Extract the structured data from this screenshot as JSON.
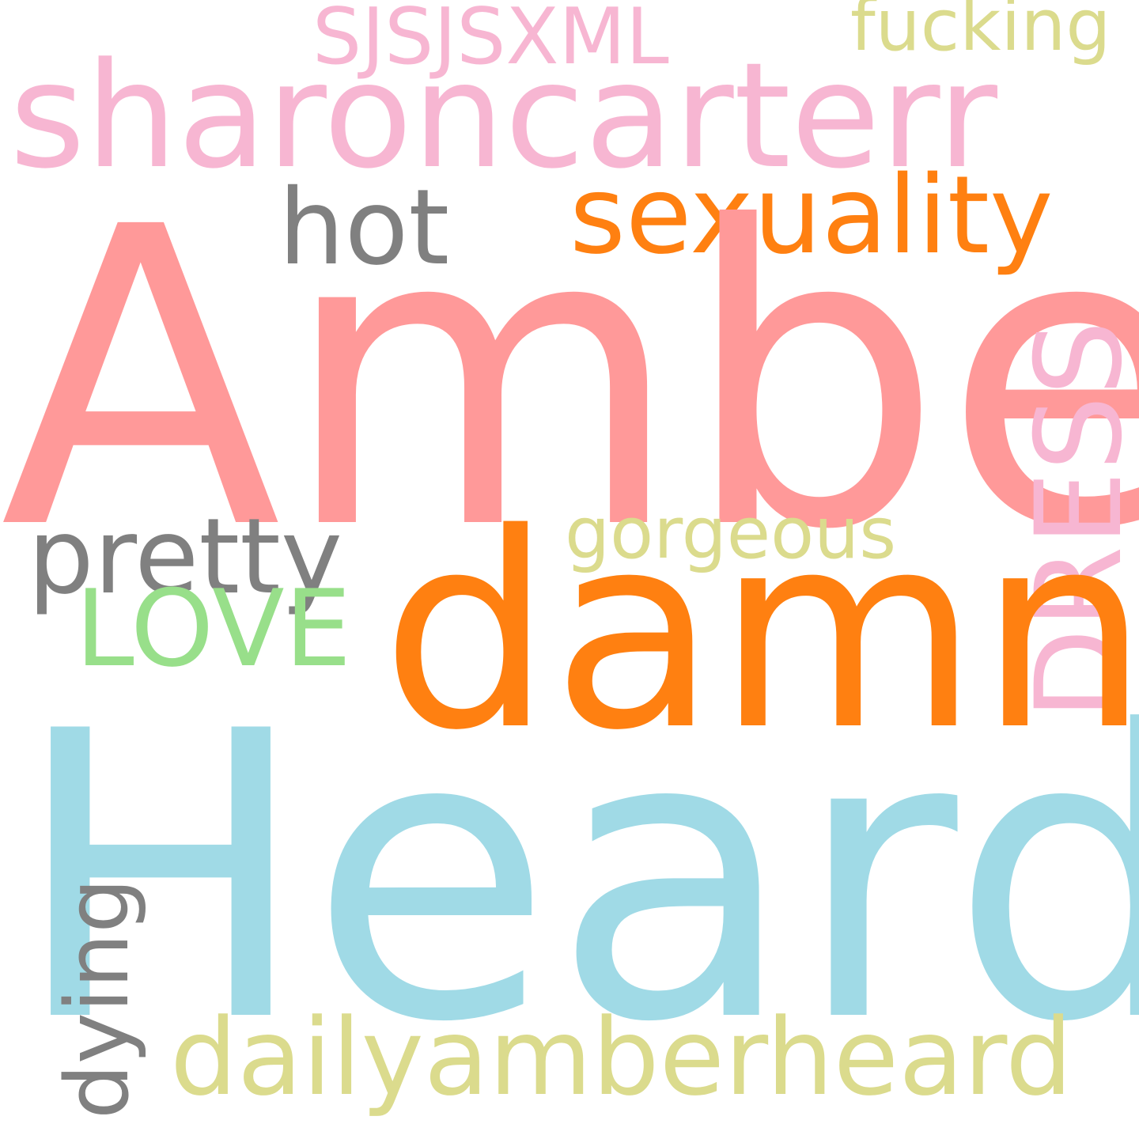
{
  "words": {
    "amber": {
      "text": "Amber",
      "color": "#ff9999"
    },
    "heard": {
      "text": "Heard",
      "color": "#a0dae6"
    },
    "damn": {
      "text": "damn",
      "color": "#ff8011"
    },
    "sharoncarterr": {
      "text": "sharoncarterr",
      "color": "#f7b6d2"
    },
    "sexuality": {
      "text": "sexuality",
      "color": "#ff8011"
    },
    "hot": {
      "text": "hot",
      "color": "#808080"
    },
    "pretty": {
      "text": "pretty",
      "color": "#808080"
    },
    "love": {
      "text": "LOVE",
      "color": "#98df8a"
    },
    "dress": {
      "text": "DRESS",
      "color": "#f7b6d2"
    },
    "gorgeous": {
      "text": "gorgeous",
      "color": "#dbdb8d"
    },
    "sjsjsxml": {
      "text": "SJSJSXML",
      "color": "#f7b6d2"
    },
    "fucking": {
      "text": "fucking",
      "color": "#dbdb8d"
    },
    "dailyamberheard": {
      "text": "dailyamberheard",
      "color": "#dbdb8d"
    },
    "dying": {
      "text": "dying",
      "color": "#808080"
    }
  }
}
